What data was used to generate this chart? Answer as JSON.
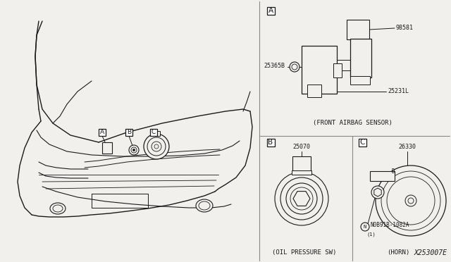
{
  "bg_color": "#f2f0ed",
  "line_color": "#1a1a1a",
  "white": "#ffffff",
  "part_number_code": "X253007E",
  "captions": {
    "A": "(FRONT AIRBAG SENSOR)",
    "B": "(OIL PRESSURE SW)",
    "C": "(HORN)"
  },
  "part_numbers": {
    "98581": "98581",
    "25231L": "25231L",
    "25365B": "25365B",
    "25070": "25070",
    "26330": "26330",
    "N0B91B_1082A": "N0B91B-1082A"
  },
  "divider_color": "#888888",
  "font_color": "#1a1a1a",
  "font_size_label": 7.5,
  "font_size_part": 6.0,
  "font_size_caption": 6.5,
  "font_size_code": 7.0
}
